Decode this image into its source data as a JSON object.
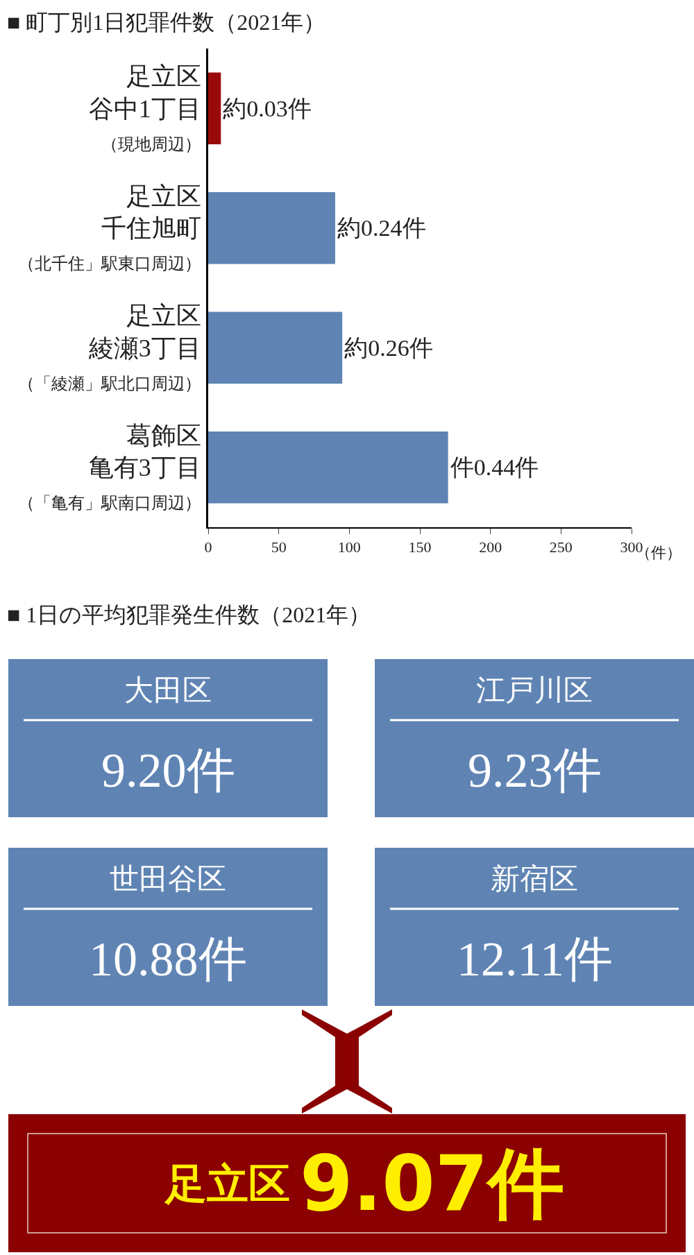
{
  "chart_data": [
    {
      "type": "bar",
      "orientation": "horizontal",
      "title": "■ 町丁別1日犯罪件数（2021年）",
      "xlabel": "（件）",
      "categories": [
        "足立区谷中1丁目（現地周辺）",
        "足立区千住旭町（北千住」駅東口周辺）",
        "足立区綾瀬3丁目（「綾瀬」駅北口周辺）",
        "葛飾区亀有3丁目（「亀有」駅南口周辺）"
      ],
      "values": [
        9,
        90,
        95,
        170
      ],
      "value_labels": [
        "約0.03件",
        "約0.24件",
        "約0.26件",
        "件0.44件"
      ],
      "colors": [
        "#9b0a0a",
        "#5f84b4",
        "#5f84b4",
        "#5f84b4"
      ],
      "xlim": [
        0,
        300
      ],
      "xticks": [
        0,
        50,
        100,
        150,
        200,
        250,
        300
      ],
      "grid": false,
      "legend": false
    },
    {
      "type": "other",
      "title": "■ 1日の平均犯罪発生件数（2021年）",
      "categories": [
        "大田区",
        "江戸川区",
        "世田谷区",
        "新宿区",
        "足立区"
      ],
      "value_labels": [
        "9.20件",
        "9.23件",
        "10.88件",
        "12.11件",
        "9.07件"
      ],
      "colors": [
        "#5f84b4",
        "#5f84b4",
        "#5f84b4",
        "#5f84b4",
        "#8b0000"
      ]
    }
  ]
}
